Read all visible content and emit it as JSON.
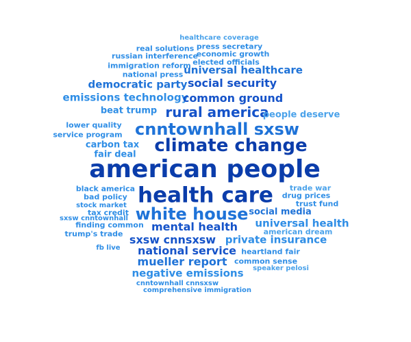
{
  "words": [
    {
      "text": "healthcare coverage"
    },
    {
      "text": "real solutions"
    },
    {
      "text": "press secretary"
    },
    {
      "text": "russian interference"
    },
    {
      "text": "economic growth"
    },
    {
      "text": "immigration reform"
    },
    {
      "text": "elected officials"
    },
    {
      "text": "national press"
    },
    {
      "text": "universal healthcare"
    },
    {
      "text": "democratic party"
    },
    {
      "text": "social security"
    },
    {
      "text": "emissions technology"
    },
    {
      "text": "common ground"
    },
    {
      "text": "beat trump"
    },
    {
      "text": "rural america"
    },
    {
      "text": "people deserve"
    },
    {
      "text": "lower quality"
    },
    {
      "text": "cnntownhall sxsw"
    },
    {
      "text": "service program"
    },
    {
      "text": "carbon tax"
    },
    {
      "text": "climate change"
    },
    {
      "text": "fair deal"
    },
    {
      "text": "american people"
    },
    {
      "text": "black america"
    },
    {
      "text": "health care"
    },
    {
      "text": "trade war"
    },
    {
      "text": "bad policy"
    },
    {
      "text": "drug prices"
    },
    {
      "text": "stock market"
    },
    {
      "text": "trust fund"
    },
    {
      "text": "tax credit"
    },
    {
      "text": "white house"
    },
    {
      "text": "sxsw cnntownhall"
    },
    {
      "text": "social media"
    },
    {
      "text": "finding common"
    },
    {
      "text": "universal health"
    },
    {
      "text": "mental health"
    },
    {
      "text": "trump's trade"
    },
    {
      "text": "american dream"
    },
    {
      "text": "sxsw cnnsxsw"
    },
    {
      "text": "private insurance"
    },
    {
      "text": "fb live"
    },
    {
      "text": "national service"
    },
    {
      "text": "heartland fair"
    },
    {
      "text": "mueller report"
    },
    {
      "text": "common sense"
    },
    {
      "text": "speaker pelosi"
    },
    {
      "text": "negative emissions"
    },
    {
      "text": "cnntownhall cnnsxsw"
    },
    {
      "text": "comprehensive immigration"
    }
  ]
}
